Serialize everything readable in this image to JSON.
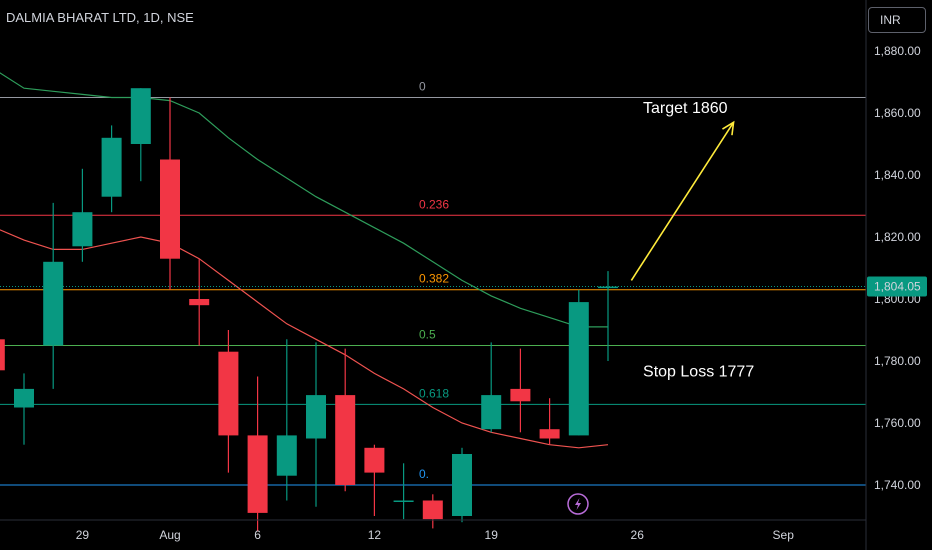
{
  "header": {
    "symbol": "DALMIA BHARAT LTD, 1D, NSE",
    "currency": "INR"
  },
  "chart_data": {
    "type": "candlestick",
    "title": "DALMIA BHARAT LTD, 1D, NSE",
    "ylim": [
      1731,
      1894
    ],
    "y_ticks": [
      1740,
      1760,
      1780,
      1800,
      1820,
      1840,
      1860,
      1880
    ],
    "y_tick_labels": [
      "1,740.00",
      "1,760.00",
      "1,780.00",
      "1,800.00",
      "1,820.00",
      "1,840.00",
      "1,860.00",
      "1,880.00"
    ],
    "x_ticks": [
      {
        "label": "29",
        "index": 2
      },
      {
        "label": "Aug",
        "index": 5
      },
      {
        "label": "6",
        "index": 8
      },
      {
        "label": "12",
        "index": 12
      },
      {
        "label": "19",
        "index": 16
      },
      {
        "label": "26",
        "index": 21
      },
      {
        "label": "Sep",
        "index": 26
      }
    ],
    "candles": [
      {
        "index": -1,
        "open": 1787,
        "high": 1790,
        "low": 1770,
        "close": 1777
      },
      {
        "index": 0,
        "open": 1765,
        "high": 1776,
        "low": 1753,
        "close": 1771
      },
      {
        "index": 1,
        "open": 1785,
        "high": 1831,
        "low": 1771,
        "close": 1812
      },
      {
        "index": 2,
        "open": 1817,
        "high": 1842,
        "low": 1812,
        "close": 1828
      },
      {
        "index": 3,
        "open": 1833,
        "high": 1856,
        "low": 1828,
        "close": 1852
      },
      {
        "index": 4,
        "open": 1850,
        "high": 1868,
        "low": 1838,
        "close": 1868
      },
      {
        "index": 5,
        "open": 1845,
        "high": 1865,
        "low": 1803,
        "close": 1813
      },
      {
        "index": 6,
        "open": 1800,
        "high": 1813,
        "low": 1785,
        "close": 1798
      },
      {
        "index": 7,
        "open": 1783,
        "high": 1790,
        "low": 1744,
        "close": 1756
      },
      {
        "index": 8,
        "open": 1756,
        "high": 1775,
        "low": 1725,
        "close": 1731
      },
      {
        "index": 9,
        "open": 1743,
        "high": 1787,
        "low": 1735,
        "close": 1756
      },
      {
        "index": 10,
        "open": 1755,
        "high": 1786,
        "low": 1733,
        "close": 1769
      },
      {
        "index": 11,
        "open": 1769,
        "high": 1784,
        "low": 1738,
        "close": 1740
      },
      {
        "index": 12,
        "open": 1752,
        "high": 1753,
        "low": 1730,
        "close": 1744
      },
      {
        "index": 13,
        "open": 1735,
        "high": 1747,
        "low": 1729,
        "close": 1735
      },
      {
        "index": 14,
        "open": 1735,
        "high": 1737,
        "low": 1726,
        "close": 1729
      },
      {
        "index": 15,
        "open": 1730,
        "high": 1752,
        "low": 1728,
        "close": 1750
      },
      {
        "index": 16,
        "open": 1758,
        "high": 1786,
        "low": 1757,
        "close": 1769
      },
      {
        "index": 17,
        "open": 1771,
        "high": 1784,
        "low": 1757,
        "close": 1767
      },
      {
        "index": 18,
        "open": 1758,
        "high": 1768,
        "low": 1753,
        "close": 1755
      },
      {
        "index": 19,
        "open": 1756,
        "high": 1803,
        "low": 1756,
        "close": 1799
      },
      {
        "index": 20,
        "open": 1804,
        "high": 1809,
        "low": 1780,
        "close": 1804
      }
    ],
    "series": [
      {
        "type": "line",
        "color": "#ef5350",
        "points": [
          [
            -1,
            1823
          ],
          [
            0,
            1819
          ],
          [
            1,
            1816
          ],
          [
            2,
            1816
          ],
          [
            3,
            1818
          ],
          [
            4,
            1820
          ],
          [
            5,
            1818
          ],
          [
            6,
            1813
          ],
          [
            7,
            1806
          ],
          [
            8,
            1799
          ],
          [
            9,
            1792
          ],
          [
            10,
            1787
          ],
          [
            11,
            1782
          ],
          [
            12,
            1776
          ],
          [
            13,
            1771
          ],
          [
            14,
            1765
          ],
          [
            15,
            1760
          ],
          [
            16,
            1757
          ],
          [
            17,
            1755
          ],
          [
            18,
            1753
          ],
          [
            19,
            1752
          ],
          [
            20,
            1753
          ]
        ]
      },
      {
        "type": "line",
        "color": "#2e9d5b",
        "points": [
          [
            -1,
            1874
          ],
          [
            0,
            1868
          ],
          [
            1,
            1867
          ],
          [
            2,
            1866
          ],
          [
            3,
            1865
          ],
          [
            4,
            1865
          ],
          [
            5,
            1864
          ],
          [
            6,
            1860
          ],
          [
            7,
            1852
          ],
          [
            8,
            1845
          ],
          [
            9,
            1839
          ],
          [
            10,
            1833
          ],
          [
            11,
            1828
          ],
          [
            12,
            1823
          ],
          [
            13,
            1818
          ],
          [
            14,
            1812
          ],
          [
            15,
            1806
          ],
          [
            16,
            1801
          ],
          [
            17,
            1797
          ],
          [
            18,
            1794
          ],
          [
            19,
            1791
          ],
          [
            20,
            1791
          ]
        ]
      }
    ],
    "fib_levels": [
      {
        "label": "0",
        "value": 1865,
        "color": "#9598a1"
      },
      {
        "label": "0.236",
        "value": 1827,
        "color": "#f23645"
      },
      {
        "label": "0.382",
        "value": 1803,
        "color": "#ff9800"
      },
      {
        "label": "0.5",
        "value": 1785,
        "color": "#4caf50"
      },
      {
        "label": "0.618",
        "value": 1766,
        "color": "#089981"
      },
      {
        "label": "0.",
        "value": 1740,
        "color": "#2196f3"
      }
    ],
    "last_price": {
      "label": "1,804.05",
      "value": 1804.05,
      "color": "#089981"
    },
    "annotations": [
      {
        "text": "Target 1860",
        "x_index": 21.2,
        "y": 1862
      },
      {
        "text": "Stop Loss 1777",
        "x_index": 21.2,
        "y": 1777
      }
    ],
    "arrow": {
      "from": [
        20.8,
        1806
      ],
      "to": [
        24.3,
        1857
      ],
      "color": "#ffeb3b"
    },
    "colors": {
      "up": "#089981",
      "down": "#f23645",
      "background": "#000000",
      "axis_text": "#d1d4dc"
    }
  }
}
